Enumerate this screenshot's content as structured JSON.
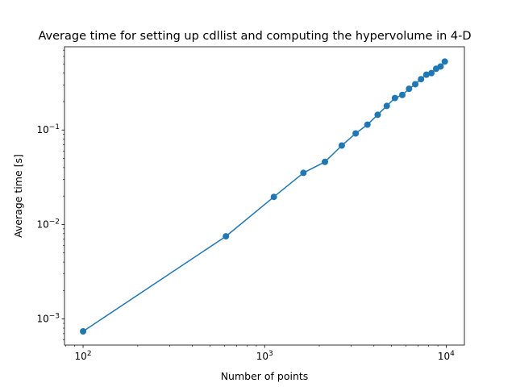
{
  "chart_data": {
    "type": "line",
    "title": "Average time for setting up cdllist and computing the hypervolume in 4-D",
    "xlabel": "Number of points",
    "ylabel": "Average time [s]",
    "xscale": "log",
    "yscale": "log",
    "xlim": [
      79,
      12600
    ],
    "ylim": [
      0.00053,
      0.76
    ],
    "grid": false,
    "legend": "none",
    "line_color": "#1f77b4",
    "marker": "circle",
    "x_ticks": [
      {
        "base": "10",
        "exp": "2",
        "value": 100
      },
      {
        "base": "10",
        "exp": "3",
        "value": 1000
      },
      {
        "base": "10",
        "exp": "4",
        "value": 10000
      }
    ],
    "y_ticks": [
      {
        "base": "10",
        "exp": "−3",
        "value": 0.001
      },
      {
        "base": "10",
        "exp": "−2",
        "value": 0.01
      },
      {
        "base": "10",
        "exp": "−1",
        "value": 0.1
      }
    ],
    "series": [
      {
        "x": [
          100,
          612,
          1124,
          1636,
          2148,
          2660,
          3172,
          3684,
          4196,
          4708,
          5220,
          5732,
          6244,
          6756,
          7268,
          7780,
          8292,
          8804,
          9316,
          9828
        ],
        "y": [
          0.00074,
          0.0075,
          0.0196,
          0.0352,
          0.046,
          0.0685,
          0.092,
          0.114,
          0.145,
          0.18,
          0.218,
          0.235,
          0.273,
          0.305,
          0.345,
          0.385,
          0.4,
          0.445,
          0.47,
          0.53
        ]
      }
    ]
  }
}
